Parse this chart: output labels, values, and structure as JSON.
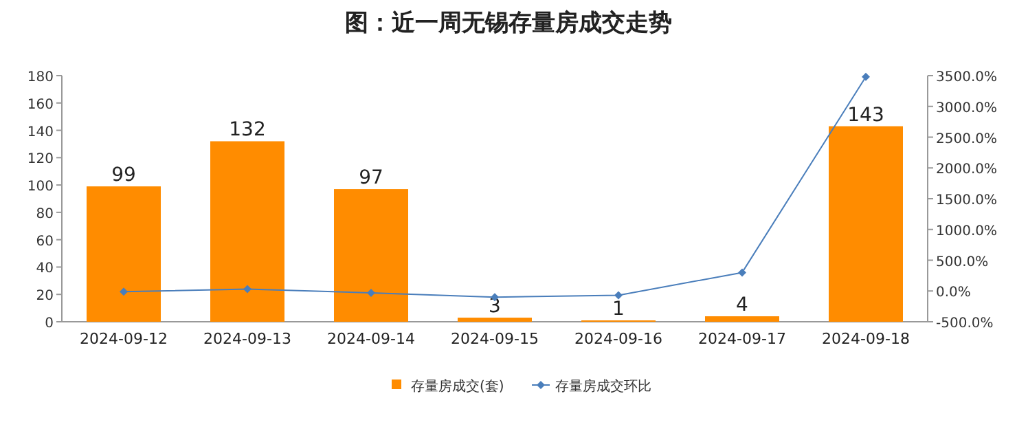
{
  "chart_data": {
    "type": "bar",
    "title": "图：近一周无锡存量房成交走势",
    "categories": [
      "2024-09-12",
      "2024-09-13",
      "2024-09-14",
      "2024-09-15",
      "2024-09-16",
      "2024-09-17",
      "2024-09-18"
    ],
    "series": [
      {
        "name": "存量房成交(套)",
        "color": "#ff8c00",
        "values": [
          99,
          132,
          97,
          3,
          1,
          4,
          143
        ],
        "value_labels": [
          "99",
          "132",
          "97",
          "3",
          "1",
          "4",
          "143"
        ]
      },
      {
        "name": "存量房成交环比",
        "type": "line",
        "axis": "y2",
        "color": "#4a7ebb",
        "values": [
          -10,
          30,
          -30,
          -100,
          -70,
          300,
          3480
        ]
      }
    ],
    "ylim": [
      0,
      180
    ],
    "yticks": [
      0,
      20,
      40,
      60,
      80,
      100,
      120,
      140,
      160,
      180
    ],
    "y2lim": [
      -500,
      3500
    ],
    "y2ticks": [
      {
        "value": -500,
        "label": "-500.0%"
      },
      {
        "value": 0,
        "label": "0.0%"
      },
      {
        "value": 500,
        "label": "500.0%"
      },
      {
        "value": 1000,
        "label": "1000.0%"
      },
      {
        "value": 1500,
        "label": "1500.0%"
      },
      {
        "value": 2000,
        "label": "2000.0%"
      },
      {
        "value": 2500,
        "label": "2500.0%"
      },
      {
        "value": 3000,
        "label": "3000.0%"
      },
      {
        "value": 3500,
        "label": "3500.0%"
      }
    ],
    "legend": "bottom",
    "marker": "diamond",
    "line_style": "solid"
  }
}
